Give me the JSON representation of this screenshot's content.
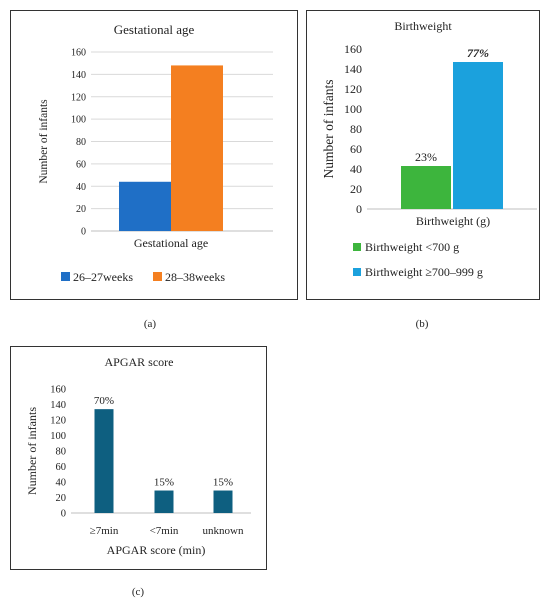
{
  "chart_data": [
    {
      "type": "bar",
      "title": "Gestational age",
      "xlabel": "Gestational age",
      "ylabel": "Number of infants",
      "ylim": [
        0,
        160
      ],
      "yticks": [
        0,
        20,
        40,
        60,
        80,
        100,
        120,
        140,
        160
      ],
      "grid": true,
      "legend": "bottom",
      "series": [
        {
          "name": "26–27weeks",
          "value": 44,
          "color": "#1f6fc6"
        },
        {
          "name": "28–38weeks",
          "value": 148,
          "color": "#f47f20"
        }
      ]
    },
    {
      "type": "bar",
      "title": "Birthweight",
      "xlabel": "Birthweight (g)",
      "ylabel": "Number of infants",
      "ylim": [
        0,
        160
      ],
      "yticks": [
        0,
        20,
        40,
        60,
        80,
        100,
        120,
        140,
        160
      ],
      "grid": false,
      "legend": "bottom",
      "series": [
        {
          "name": "Birthweight <700 g",
          "value": 43,
          "label": "23%",
          "color": "#3db53d"
        },
        {
          "name": "Birthweight ≥700–999 g",
          "value": 147,
          "label": "77%",
          "color": "#1ba1dd"
        }
      ]
    },
    {
      "type": "bar",
      "title": "APGAR score",
      "xlabel": "APGAR score (min)",
      "ylabel": "Number of infants",
      "ylim": [
        0,
        160
      ],
      "yticks": [
        0,
        20,
        40,
        60,
        80,
        100,
        120,
        140,
        160
      ],
      "grid": false,
      "categories": [
        "≥7min",
        "<7min",
        "unknown"
      ],
      "values": [
        134,
        29,
        29
      ],
      "labels": [
        "70%",
        "15%",
        "15%"
      ],
      "color": "#0e5f80"
    }
  ],
  "subcaptions": [
    "(a)",
    "(b)",
    "(c)"
  ]
}
